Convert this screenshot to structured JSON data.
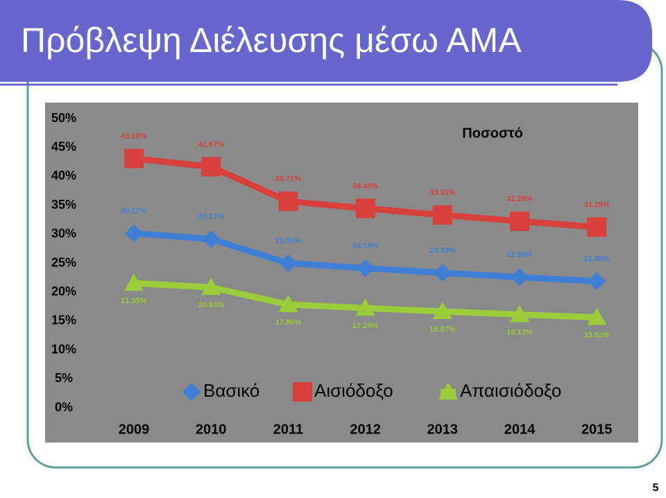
{
  "slide": {
    "title": "Πρόβλεψη Διέλευσης μέσω ΑΜΑ",
    "page_number": "5"
  },
  "chart_data": {
    "type": "line",
    "title": "Ποσοστό",
    "categories": [
      "2009",
      "2010",
      "2011",
      "2012",
      "2013",
      "2014",
      "2015"
    ],
    "series": [
      {
        "name": "Βασικό",
        "color": "#3f7fd6",
        "marker": "diamond",
        "values": [
          30.17,
          29.17,
          25.0,
          24.14,
          23.33,
          22.58,
          21.88
        ],
        "value_labels": [
          "30.17%",
          "29.17%",
          "25.00%",
          "24.14%",
          "23.33%",
          "22.58%",
          "21.88%"
        ]
      },
      {
        "name": "Αισιόδοξο",
        "color": "#d8403c",
        "marker": "square",
        "values": [
          43.1,
          41.67,
          35.71,
          34.48,
          33.33,
          32.26,
          31.25
        ],
        "value_labels": [
          "43.10%",
          "41.67%",
          "35.71%",
          "34.48%",
          "33.33%",
          "32.26%",
          "31.25%"
        ]
      },
      {
        "name": "Απαισιόδοξο",
        "color": "#9bcc3a",
        "marker": "triangle",
        "values": [
          21.55,
          20.83,
          17.86,
          17.24,
          16.67,
          16.13,
          15.63
        ],
        "value_labels": [
          "21.55%",
          "20.83%",
          "17.86%",
          "17.24%",
          "16.67%",
          "16.13%",
          "15.63%"
        ]
      }
    ],
    "ylim": [
      0,
      50
    ],
    "yticks": [
      {
        "value": 0,
        "label": "0%"
      },
      {
        "value": 5,
        "label": "5%"
      },
      {
        "value": 10,
        "label": "10%"
      },
      {
        "value": 15,
        "label": "15%"
      },
      {
        "value": 20,
        "label": "20%"
      },
      {
        "value": 25,
        "label": "25%"
      },
      {
        "value": 30,
        "label": "30%"
      },
      {
        "value": 35,
        "label": "35%"
      },
      {
        "value": 40,
        "label": "40%"
      },
      {
        "value": 45,
        "label": "45%"
      },
      {
        "value": 50,
        "label": "50%"
      }
    ],
    "grid": false,
    "legend": "bottom"
  }
}
